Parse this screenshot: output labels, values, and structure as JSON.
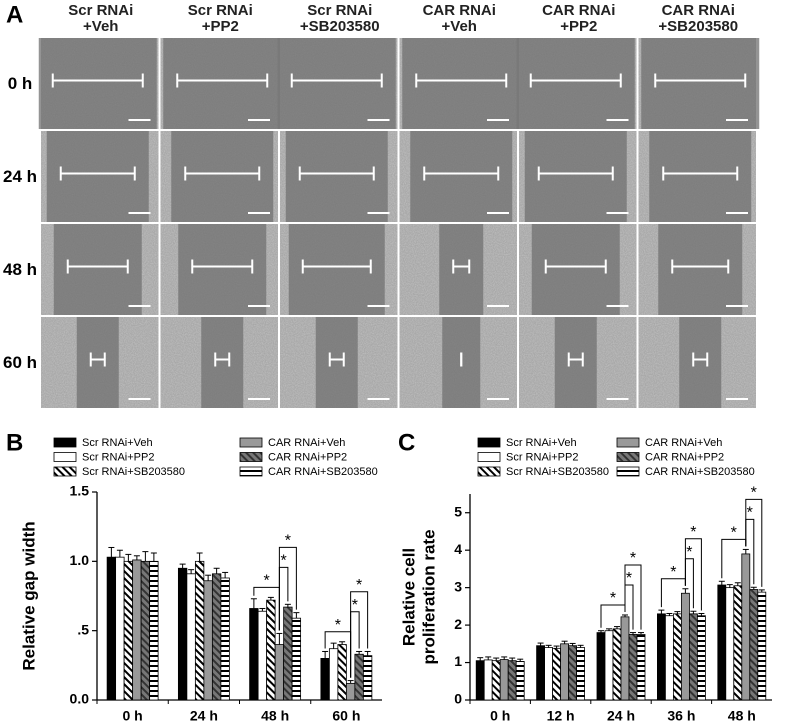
{
  "panel_labels": [
    "A",
    "B",
    "C"
  ],
  "image_grid": {
    "columns": [
      [
        "Scr RNAi",
        "+Veh"
      ],
      [
        "Scr RNAi",
        "+PP2"
      ],
      [
        "Scr RNAi",
        "+SB203580"
      ],
      [
        "CAR RNAi",
        "+Veh"
      ],
      [
        "CAR RNAi",
        "+PP2"
      ],
      [
        "CAR RNAi",
        "+SB203580"
      ]
    ],
    "rows": [
      "0 h",
      "24 h",
      "48 h",
      "60 h"
    ]
  },
  "chart_data": [
    {
      "type": "bar",
      "ylabel": [
        "Relative gap width"
      ],
      "categories": [
        "0 h",
        "24 h",
        "48 h",
        "60 h"
      ],
      "ylim": [
        0,
        1.5
      ],
      "yticks": [
        {
          "value": 0,
          "label": "0.0"
        },
        {
          "value": 0.5,
          "label": ".5"
        },
        {
          "value": 1,
          "label": "1.0"
        },
        1.5
      ],
      "series": [
        {
          "name": "Scr RNAi+Veh",
          "color": "#000000",
          "pattern": "solid",
          "values": [
            1.03,
            0.95,
            0.66,
            0.3
          ],
          "errors": [
            0.07,
            0.03,
            0.07,
            0.05
          ]
        },
        {
          "name": "Scr RNAi+PP2",
          "color": "#ffffff",
          "pattern": "solid",
          "values": [
            1.03,
            0.91,
            0.64,
            0.37
          ],
          "errors": [
            0.05,
            0.03,
            0.02,
            0.04
          ]
        },
        {
          "name": "Scr RNAi+SB203580",
          "color": "#ffffff",
          "pattern": "diagonal",
          "values": [
            1.0,
            1.0,
            0.72,
            0.4
          ],
          "errors": [
            0.05,
            0.06,
            0.02,
            0.02
          ]
        },
        {
          "name": "CAR RNAi+Veh",
          "color": "#999999",
          "pattern": "solid",
          "values": [
            1.01,
            0.86,
            0.4,
            0.12
          ],
          "errors": [
            0.03,
            0.04,
            0.08,
            0.02
          ]
        },
        {
          "name": "CAR RNAi+PP2",
          "color": "#777777",
          "pattern": "diagonal",
          "values": [
            1.0,
            0.91,
            0.67,
            0.33
          ],
          "errors": [
            0.07,
            0.04,
            0.02,
            0.02
          ]
        },
        {
          "name": "CAR RNAi+SB203580",
          "color": "#ffffff",
          "pattern": "horizontal",
          "values": [
            1.0,
            0.88,
            0.59,
            0.32
          ],
          "errors": [
            0.06,
            0.04,
            0.04,
            0.03
          ]
        }
      ],
      "significance": [
        null,
        null,
        [
          "*",
          "*",
          "*"
        ],
        [
          "*",
          "*",
          "*"
        ]
      ]
    },
    {
      "type": "bar",
      "ylabel": [
        "Relative cell",
        "proliferation rate"
      ],
      "categories": [
        "0 h",
        "12 h",
        "24 h",
        "36 h",
        "48 h"
      ],
      "ylim": [
        0,
        5.5
      ],
      "yticks": [
        0,
        1,
        2,
        3,
        4,
        5
      ],
      "series": [
        {
          "name": "Scr RNAi+Veh",
          "color": "#000000",
          "pattern": "solid",
          "values": [
            1.05,
            1.45,
            1.8,
            2.3,
            3.07
          ],
          "errors": [
            0.08,
            0.07,
            0.05,
            0.1,
            0.1
          ]
        },
        {
          "name": "Scr RNAi+PP2",
          "color": "#ffffff",
          "pattern": "solid",
          "values": [
            1.07,
            1.4,
            1.85,
            2.25,
            3.0
          ],
          "errors": [
            0.08,
            0.06,
            0.05,
            0.06,
            0.08
          ]
        },
        {
          "name": "Scr RNAi+SB203580",
          "color": "#ffffff",
          "pattern": "diagonal",
          "values": [
            1.05,
            1.38,
            1.9,
            2.3,
            3.05
          ],
          "errors": [
            0.07,
            0.06,
            0.06,
            0.06,
            0.08
          ]
        },
        {
          "name": "CAR RNAi+Veh",
          "color": "#999999",
          "pattern": "solid",
          "values": [
            1.08,
            1.5,
            2.22,
            2.85,
            3.9
          ],
          "errors": [
            0.07,
            0.07,
            0.05,
            0.12,
            0.12
          ]
        },
        {
          "name": "CAR RNAi+PP2",
          "color": "#777777",
          "pattern": "diagonal",
          "values": [
            1.05,
            1.45,
            1.75,
            2.3,
            2.95
          ],
          "errors": [
            0.07,
            0.06,
            0.05,
            0.07,
            0.06
          ]
        },
        {
          "name": "CAR RNAi+SB203580",
          "color": "#ffffff",
          "pattern": "horizontal",
          "values": [
            1.03,
            1.4,
            1.75,
            2.25,
            2.88
          ],
          "errors": [
            0.06,
            0.06,
            0.05,
            0.06,
            0.06
          ]
        }
      ],
      "significance": [
        null,
        null,
        [
          "*",
          "*",
          "*"
        ],
        [
          "*",
          "*",
          "*"
        ],
        [
          "*",
          "*",
          "*"
        ]
      ]
    }
  ]
}
